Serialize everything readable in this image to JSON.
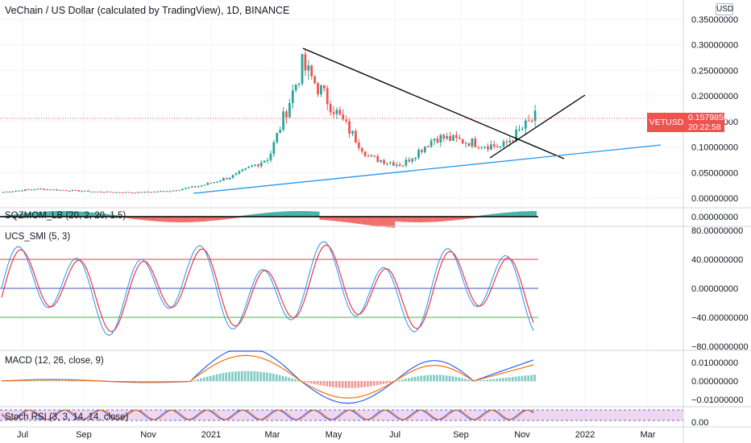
{
  "header": {
    "title": "VeChain / US Dollar (calculated by TradingView), 1D, BINANCE",
    "currency_button": "USD"
  },
  "price_tag": {
    "symbol": "VETUSD",
    "price": "0.15798581",
    "countdown": "20:22:58"
  },
  "panes": {
    "sqz": "SQZMOM_LB (20, 2, 20, 1.5)",
    "smi": "UCS_SMI (5, 3)",
    "macd": "MACD (12, 26, close, 9)",
    "stoch": "Stoch RSI (3, 3, 14, 14, close)"
  },
  "colors": {
    "up": "#26a69a",
    "down": "#ef5350",
    "trendline": "#000000",
    "support": "#2196f3",
    "smi_blue": "#2196f3",
    "smi_red": "#f23645",
    "macd_line": "#2962ff",
    "signal_line": "#ff6d00",
    "stoch_band": "#e1bee7"
  },
  "chart_data": {
    "type": "candlestick",
    "x_ticks": [
      "Jul",
      "Sep",
      "Nov",
      "2021",
      "Mar",
      "May",
      "Jul",
      "Sep",
      "Nov",
      "2022",
      "Mar"
    ],
    "price_axis": {
      "ticks": [
        "0.35000000",
        "0.30000000",
        "0.25000000",
        "0.20000000",
        "0.15000000",
        "0.10000000",
        "0.05000000",
        "0.00000000"
      ],
      "range": [
        0,
        0.35
      ]
    },
    "price_series": [
      {
        "month": "Jul 2020",
        "value": 0.012
      },
      {
        "month": "Aug 2020",
        "value": 0.018
      },
      {
        "month": "Sep 2020",
        "value": 0.015
      },
      {
        "month": "Oct 2020",
        "value": 0.012
      },
      {
        "month": "Nov 2020",
        "value": 0.011
      },
      {
        "month": "Dec 2020",
        "value": 0.014
      },
      {
        "month": "Jan 2021",
        "value": 0.025
      },
      {
        "month": "Feb 2021",
        "value": 0.045
      },
      {
        "month": "Mar 2021",
        "value": 0.08
      },
      {
        "month": "Apr 2021",
        "value": 0.26
      },
      {
        "month": "May 2021",
        "value": 0.17
      },
      {
        "month": "Jun 2021",
        "value": 0.08
      },
      {
        "month": "Jul 2021",
        "value": 0.065
      },
      {
        "month": "Aug 2021",
        "value": 0.12
      },
      {
        "month": "Sep 2021",
        "value": 0.11
      },
      {
        "month": "Oct 2021",
        "value": 0.1
      },
      {
        "month": "Nov 2021",
        "value": 0.158
      }
    ],
    "sqz_axis": {
      "ticks": [
        "0.00000000"
      ]
    },
    "smi_axis": {
      "ticks": [
        "80.00000000",
        "40.00000000",
        "0.00000000",
        "−40.00000000",
        "−80.00000000"
      ],
      "range": [
        -80,
        80
      ]
    },
    "macd_axis": {
      "ticks": [
        "0.01000000",
        "0.00000000",
        "−0.01000000"
      ],
      "range": [
        -0.014,
        0.0195
      ]
    },
    "stoch_axis": {
      "ticks": [
        "0.00"
      ]
    }
  }
}
